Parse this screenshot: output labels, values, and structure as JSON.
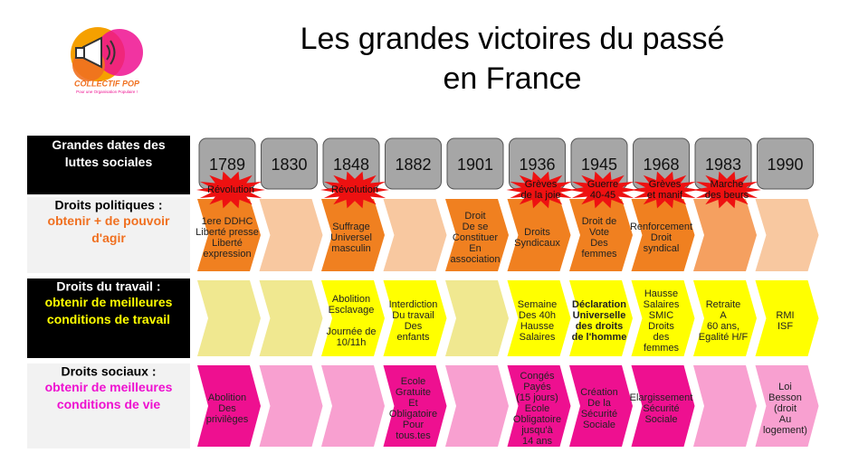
{
  "logo": {
    "name": "COLLECTIF POP",
    "tagline": "Pour une Organisation Populaire !"
  },
  "title": [
    "Les grandes victoires du passé",
    "en France"
  ],
  "header": {
    "label": [
      "Grandes dates des",
      "luttes sociales"
    ],
    "years": [
      "1789",
      "1830",
      "1848",
      "1882",
      "1901",
      "1936",
      "1945",
      "1968",
      "1983",
      "1990"
    ],
    "events": [
      [
        "Révolution"
      ],
      null,
      [
        "Révolution"
      ],
      null,
      null,
      [
        "Grèves",
        "de la joie"
      ],
      [
        "Guerre",
        "40-45"
      ],
      [
        "Grèves",
        "et manif"
      ],
      [
        "Marche",
        "des beurs"
      ],
      null
    ]
  },
  "rows": [
    {
      "title": "Droits politiques :",
      "subtitle": [
        "obtenir + de pouvoir",
        "d'agir"
      ],
      "title_color": "#000000",
      "subtitle_color": "#f07020",
      "label_bg": "#f2f2f2",
      "cells": [
        {
          "lines": [
            "1ere DDHC",
            "Liberté presse",
            "Liberté",
            "expression"
          ],
          "color": "#f08020"
        },
        {
          "lines": [],
          "color": "#f8c8a0"
        },
        {
          "lines": [
            "Suffrage",
            "Universel",
            "masculin"
          ],
          "color": "#f08020"
        },
        {
          "lines": [],
          "color": "#f8c8a0"
        },
        {
          "lines": [
            "Droit",
            "De se",
            "Constituer",
            "En",
            "association"
          ],
          "color": "#f08020"
        },
        {
          "lines": [
            "Droits",
            "Syndicaux"
          ],
          "color": "#f08020"
        },
        {
          "lines": [
            "Droit de",
            "Vote",
            "Des",
            "femmes"
          ],
          "color": "#f08020"
        },
        {
          "lines": [
            "Renforcement",
            "Droit",
            "syndical"
          ],
          "color": "#f08020"
        },
        {
          "lines": [],
          "color": "#f5a060"
        },
        {
          "lines": [],
          "color": "#f8c8a0"
        }
      ]
    },
    {
      "title": "Droits du travail :",
      "subtitle": [
        "obtenir de meilleures",
        "conditions de travail"
      ],
      "title_color": "#ffffff",
      "subtitle_color": "#ffff00",
      "label_bg": "#000000",
      "cells": [
        {
          "lines": [],
          "color": "#f0e890"
        },
        {
          "lines": [],
          "color": "#f0e890"
        },
        {
          "lines": [
            "Abolition",
            "Esclavage",
            "",
            "Journée de",
            "10/11h"
          ],
          "color": "#ffff00"
        },
        {
          "lines": [
            "Interdiction",
            "Du travail",
            "Des",
            "enfants"
          ],
          "color": "#ffff00"
        },
        {
          "lines": [],
          "color": "#f0e890"
        },
        {
          "lines": [
            "Semaine",
            "Des 40h",
            "Hausse",
            "Salaires"
          ],
          "color": "#ffff00"
        },
        {
          "lines": [
            "Déclaration",
            "Universelle",
            "des droits",
            "de l'homme"
          ],
          "color": "#ffff00",
          "bold": true
        },
        {
          "lines": [
            "Hausse",
            "Salaires",
            "SMIC",
            "Droits",
            "des",
            "femmes"
          ],
          "color": "#ffff00"
        },
        {
          "lines": [
            "Retraite",
            "A",
            "60 ans,",
            "Egalité H/F"
          ],
          "color": "#ffff00"
        },
        {
          "lines": [
            "RMI",
            "ISF"
          ],
          "color": "#ffff00"
        }
      ]
    },
    {
      "title": "Droits sociaux :",
      "subtitle": [
        "obtenir de meilleures",
        "conditions de vie"
      ],
      "title_color": "#000000",
      "subtitle_color": "#ee10d0",
      "label_bg": "#f2f2f2",
      "cells": [
        {
          "lines": [
            "Abolition",
            "Des",
            "privilèges"
          ],
          "color": "#ee1090"
        },
        {
          "lines": [],
          "color": "#f8a0d0"
        },
        {
          "lines": [],
          "color": "#f8a0d0"
        },
        {
          "lines": [
            "Ecole",
            "Gratuite",
            "Et",
            "Obligatoire",
            "Pour",
            "tous.tes"
          ],
          "color": "#ee1090"
        },
        {
          "lines": [],
          "color": "#f8a0d0"
        },
        {
          "lines": [
            "Congés",
            "Payés",
            "(15 jours)",
            "Ecole",
            "Obligatoire",
            "jusqu'à",
            "14 ans"
          ],
          "color": "#ee1090"
        },
        {
          "lines": [
            "Création",
            "De la",
            "Sécurité",
            "Sociale"
          ],
          "color": "#ee1090"
        },
        {
          "lines": [
            "Elargissement",
            "Sécurité",
            "Sociale"
          ],
          "color": "#ee1090"
        },
        {
          "lines": [],
          "color": "#f8a0d0"
        },
        {
          "lines": [
            "Loi",
            "Besson",
            "(droit",
            "Au",
            "logement)"
          ],
          "color": "#f8a0d0"
        }
      ]
    }
  ]
}
